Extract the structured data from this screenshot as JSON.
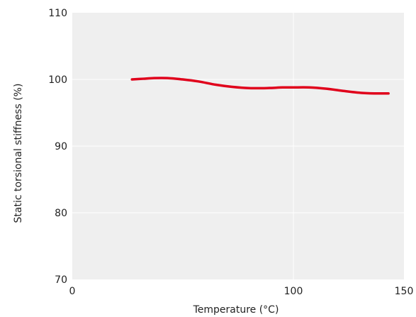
{
  "chart_data": {
    "type": "line",
    "title": "",
    "xlabel": "Temperature (°C)",
    "ylabel": "Static torsional stiffness (%)",
    "xlim": [
      0,
      150
    ],
    "ylim": [
      70,
      110
    ],
    "x_ticks": [
      0,
      100,
      150
    ],
    "y_ticks": [
      70,
      80,
      90,
      100,
      110
    ],
    "grid": true,
    "legend": "none",
    "colors": {
      "plot_background": "#efefef",
      "grid": "#ffffff",
      "line": "#e0001b"
    },
    "series": [
      {
        "x": [
          27,
          32,
          37,
          43,
          50,
          57,
          65,
          72,
          80,
          88,
          95,
          100,
          107,
          115,
          122,
          130,
          137,
          143
        ],
        "y": [
          100.0,
          100.1,
          100.2,
          100.2,
          100.0,
          99.7,
          99.2,
          98.9,
          98.7,
          98.7,
          98.8,
          98.8,
          98.8,
          98.6,
          98.3,
          98.0,
          97.9,
          97.9
        ]
      }
    ]
  }
}
